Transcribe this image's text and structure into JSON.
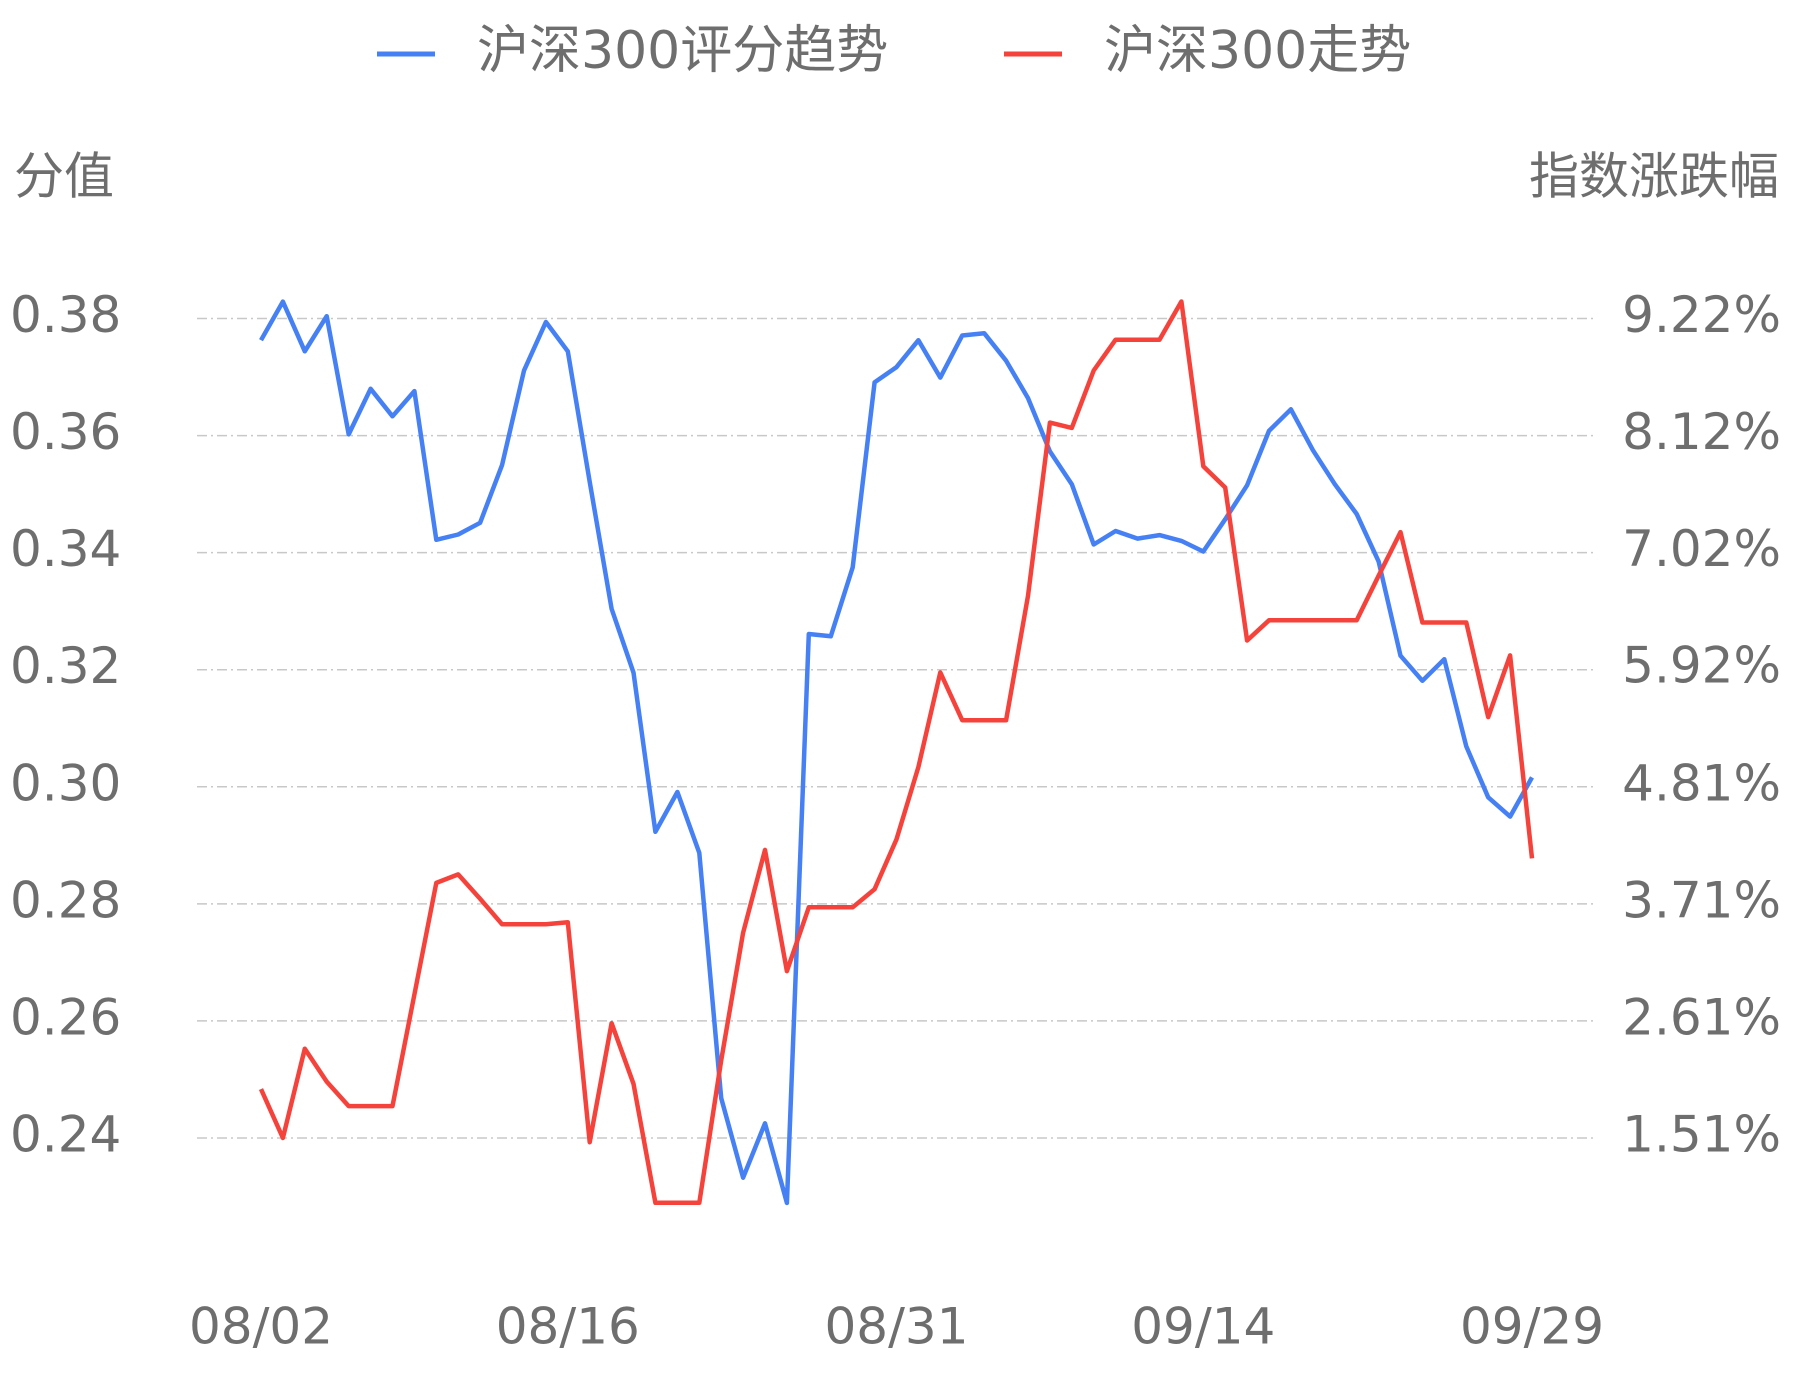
{
  "chart_data": {
    "type": "line",
    "y_label": "分值",
    "y2_label": "指数涨跌幅",
    "categories": [
      "08/02",
      null,
      null,
      null,
      null,
      null,
      null,
      null,
      null,
      null,
      null,
      null,
      null,
      null,
      "08/16",
      null,
      null,
      null,
      null,
      null,
      null,
      null,
      null,
      null,
      null,
      null,
      null,
      null,
      null,
      "08/31",
      null,
      null,
      null,
      null,
      null,
      null,
      null,
      null,
      null,
      null,
      null,
      null,
      null,
      "09/14",
      null,
      null,
      null,
      null,
      null,
      null,
      null,
      null,
      null,
      null,
      null,
      null,
      null,
      null,
      "09/29"
    ],
    "series": [
      {
        "name": "沪深300评分趋势",
        "color": "#4680f5",
        "axis": "y",
        "values": [
          0.3763,
          0.3829,
          0.3744,
          0.3804,
          0.3602,
          0.368,
          0.3633,
          0.3676,
          0.3422,
          0.3431,
          0.3451,
          0.355,
          0.3711,
          0.3794,
          0.3744,
          0.3521,
          0.3304,
          0.3195,
          0.2923,
          0.2991,
          0.2887,
          0.2468,
          0.2332,
          0.2425,
          0.2289,
          0.3261,
          0.3257,
          0.3375,
          0.3691,
          0.3717,
          0.3763,
          0.3699,
          0.3771,
          0.3775,
          0.3728,
          0.3664,
          0.3573,
          0.3517,
          0.3414,
          0.3437,
          0.3424,
          0.343,
          0.342,
          0.3402,
          0.3457,
          0.3515,
          0.3608,
          0.3645,
          0.3575,
          0.3517,
          0.3466,
          0.3385,
          0.3224,
          0.3181,
          0.3218,
          0.3069,
          0.2982,
          0.2949,
          0.3016
        ]
      },
      {
        "name": "沪深300走势",
        "color": "#f5433c",
        "axis": "y2",
        "values": [
          1.97,
          1.51,
          2.35,
          2.04,
          1.81,
          1.81,
          1.81,
          2.86,
          3.91,
          3.99,
          3.76,
          3.52,
          3.52,
          3.52,
          3.54,
          1.47,
          2.59,
          2.02,
          0.9,
          0.9,
          0.9,
          2.24,
          3.44,
          4.22,
          3.08,
          3.68,
          3.68,
          3.68,
          3.85,
          4.32,
          5.0,
          5.89,
          5.44,
          5.44,
          5.44,
          6.61,
          8.24,
          8.19,
          8.73,
          9.02,
          9.02,
          9.02,
          9.38,
          7.83,
          7.63,
          6.19,
          6.38,
          6.38,
          6.38,
          6.38,
          6.38,
          6.8,
          7.21,
          6.36,
          6.36,
          6.36,
          5.47,
          6.05,
          4.14
        ]
      }
    ],
    "ylim": [
      0.22,
      0.39
    ],
    "yticks": [
      {
        "value": 0.24,
        "label": "0.24"
      },
      {
        "value": 0.26,
        "label": "0.26"
      },
      {
        "value": 0.28,
        "label": "0.28"
      },
      {
        "value": 0.3,
        "label": "0.30"
      },
      {
        "value": 0.32,
        "label": "0.32"
      },
      {
        "value": 0.34,
        "label": "0.34"
      },
      {
        "value": 0.36,
        "label": "0.36"
      },
      {
        "value": 0.38,
        "label": "0.38"
      }
    ],
    "y2lim": [
      0.409,
      9.77
    ],
    "y2ticks": [
      {
        "value": 1.51,
        "label": "1.51%"
      },
      {
        "value": 2.61,
        "label": "2.61%"
      },
      {
        "value": 3.71,
        "label": "3.71%"
      },
      {
        "value": 4.81,
        "label": "4.81%"
      },
      {
        "value": 5.92,
        "label": "5.92%"
      },
      {
        "value": 7.02,
        "label": "7.02%"
      },
      {
        "value": 8.12,
        "label": "8.12%"
      },
      {
        "value": 9.22,
        "label": "9.22%"
      }
    ],
    "grid": true
  }
}
